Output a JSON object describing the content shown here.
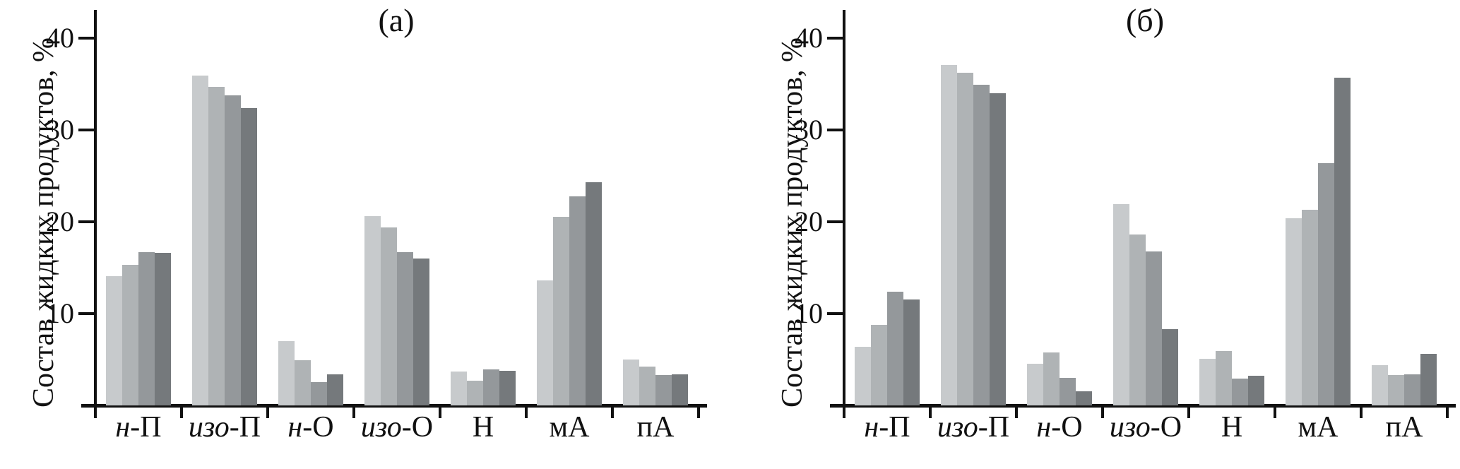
{
  "figure": {
    "background": "#ffffff",
    "axis_color": "#111111",
    "series_colors": [
      "#c7cacc",
      "#afb3b5",
      "#94989b",
      "#75797c"
    ]
  },
  "chart_data": [
    {
      "type": "bar",
      "title": "(а)",
      "ylabel": "Состав жидких продуктов, %",
      "ylim": [
        0,
        43
      ],
      "yticks": [
        10,
        20,
        30,
        40
      ],
      "grid": "off",
      "legend": "none",
      "categories": [
        {
          "label": "н-П",
          "italic": "н",
          "plain": "-П"
        },
        {
          "label": "изо-П",
          "italic": "изо",
          "plain": "-П"
        },
        {
          "label": "н-О",
          "italic": "н",
          "plain": "-О"
        },
        {
          "label": "изо-О",
          "italic": "изо",
          "plain": "-О"
        },
        {
          "label": "Н",
          "italic": "",
          "plain": "Н"
        },
        {
          "label": "мА",
          "italic": "",
          "plain": "мА"
        },
        {
          "label": "пА",
          "italic": "",
          "plain": "пА"
        }
      ],
      "series": [
        {
          "name": "bar-1",
          "color": "#c7cacc",
          "values": [
            14.1,
            35.9,
            7.0,
            20.6,
            3.7,
            13.6,
            5.0
          ]
        },
        {
          "name": "bar-2",
          "color": "#afb3b5",
          "values": [
            15.3,
            34.7,
            4.9,
            19.4,
            2.7,
            20.5,
            4.2
          ]
        },
        {
          "name": "bar-3",
          "color": "#94989b",
          "values": [
            16.7,
            33.8,
            2.5,
            16.7,
            3.9,
            22.8,
            3.3
          ]
        },
        {
          "name": "bar-4",
          "color": "#75797c",
          "values": [
            16.6,
            32.4,
            3.4,
            16.0,
            3.8,
            24.3,
            3.4
          ]
        }
      ]
    },
    {
      "type": "bar",
      "title": "(б)",
      "ylabel": "Состав жидких продуктов, %",
      "ylim": [
        0,
        43
      ],
      "yticks": [
        10,
        20,
        30,
        40
      ],
      "grid": "off",
      "legend": "none",
      "categories": [
        {
          "label": "н-П",
          "italic": "н",
          "plain": "-П"
        },
        {
          "label": "изо-П",
          "italic": "изо",
          "plain": "-П"
        },
        {
          "label": "н-О",
          "italic": "н",
          "plain": "-О"
        },
        {
          "label": "изо-О",
          "italic": "изо",
          "plain": "-О"
        },
        {
          "label": "Н",
          "italic": "",
          "plain": "Н"
        },
        {
          "label": "мА",
          "italic": "",
          "plain": "мА"
        },
        {
          "label": "пА",
          "italic": "",
          "plain": "пА"
        }
      ],
      "series": [
        {
          "name": "bar-1",
          "color": "#c7cacc",
          "values": [
            6.4,
            37.1,
            4.5,
            21.9,
            5.1,
            20.4,
            4.4
          ]
        },
        {
          "name": "bar-2",
          "color": "#afb3b5",
          "values": [
            8.8,
            36.2,
            5.8,
            18.6,
            5.9,
            21.3,
            3.3
          ]
        },
        {
          "name": "bar-3",
          "color": "#94989b",
          "values": [
            12.4,
            34.9,
            3.0,
            16.8,
            2.9,
            26.4,
            3.4
          ]
        },
        {
          "name": "bar-4",
          "color": "#75797c",
          "values": [
            11.5,
            34.0,
            1.5,
            8.3,
            3.2,
            35.7,
            5.6
          ]
        }
      ]
    }
  ]
}
